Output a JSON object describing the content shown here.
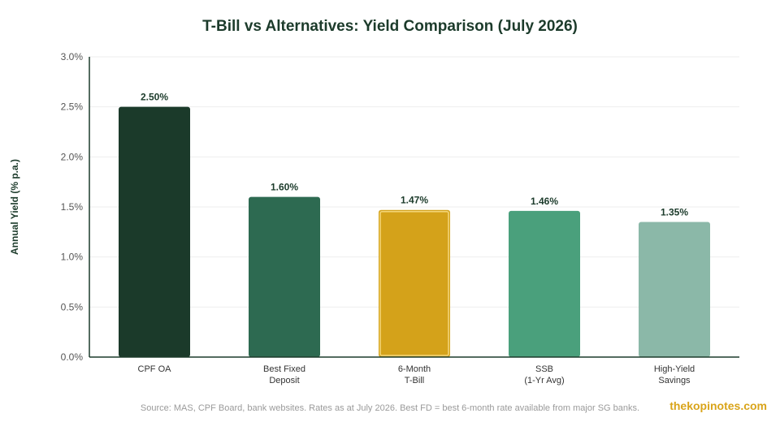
{
  "chart_data": {
    "type": "bar",
    "title": "T-Bill vs Alternatives: Yield Comparison (July 2026)",
    "xlabel": "",
    "ylabel": "Annual Yield (% p.a.)",
    "ylim": [
      0,
      3.0
    ],
    "yticks": [
      "0.0%",
      "0.5%",
      "1.0%",
      "1.5%",
      "2.0%",
      "2.5%",
      "3.0%"
    ],
    "grid": true,
    "categories": [
      [
        "CPF OA"
      ],
      [
        "Best Fixed",
        "Deposit"
      ],
      [
        "6-Month",
        "T-Bill"
      ],
      [
        "SSB",
        "(1-Yr Avg)"
      ],
      [
        "High-Yield",
        "Savings"
      ]
    ],
    "values": [
      2.5,
      1.6,
      1.47,
      1.46,
      1.35
    ],
    "value_labels": [
      "2.50%",
      "1.60%",
      "1.47%",
      "1.46%",
      "1.35%"
    ],
    "colors": [
      "#1b3a2a",
      "#2d6a51",
      "#d4a21a",
      "#4aa07c",
      "#8bb8a8"
    ],
    "highlight_index": 2
  },
  "footer": {
    "source": "Source: MAS, CPF Board, bank websites. Rates as at July 2026. Best FD = best 6-month rate available from major SG banks.",
    "brand": "thekopinotes.com"
  }
}
